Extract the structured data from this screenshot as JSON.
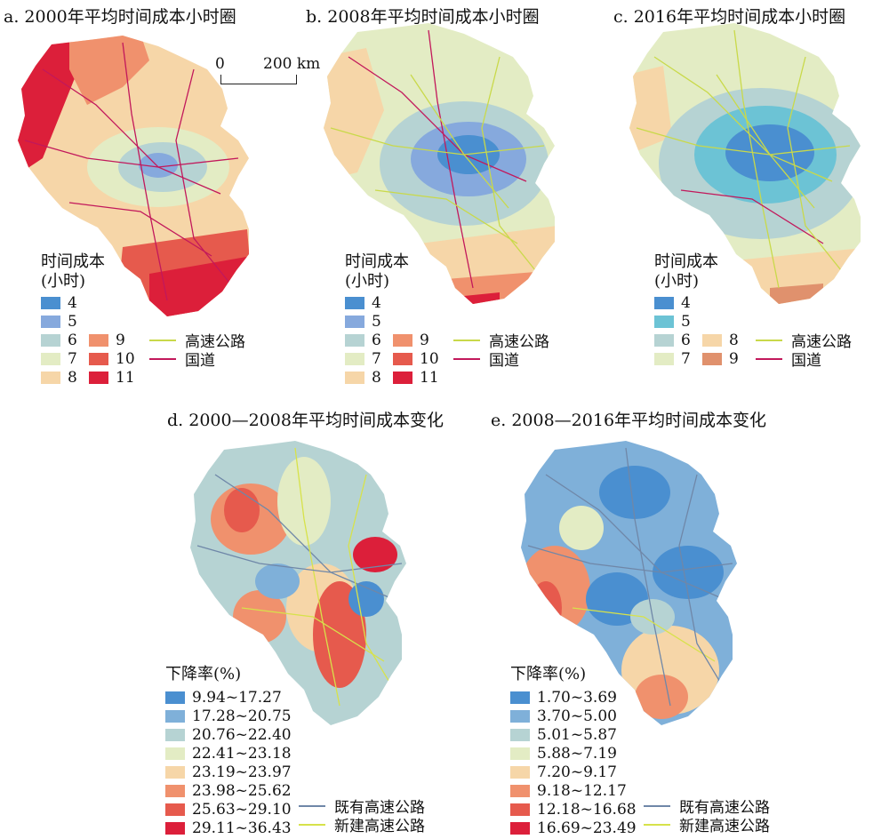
{
  "panels": {
    "a": {
      "title": "a. 2000年平均时间成本小时圈"
    },
    "b": {
      "title": "b. 2008年平均时间成本小时圈"
    },
    "c": {
      "title": "c. 2016年平均时间成本小时圈"
    },
    "d": {
      "title": "d. 2000—2008年平均时间成本变化"
    },
    "e": {
      "title": "e. 2008—2016年平均时间成本变化"
    }
  },
  "scale_bar": {
    "start": "0",
    "end": "200 km"
  },
  "legend_hours": {
    "header": "时间成本\n(小时)",
    "classes": [
      {
        "label": "4",
        "color": "#4a8fd0"
      },
      {
        "label": "5",
        "color": "#86a9dd"
      },
      {
        "label": "6",
        "color": "#b6d3d3"
      },
      {
        "label": "7",
        "color": "#e3ecc4"
      },
      {
        "label": "8",
        "color": "#f6d6a8"
      },
      {
        "label": "9",
        "color": "#f0916d"
      },
      {
        "label": "10",
        "color": "#e65a4d"
      },
      {
        "label": "11",
        "color": "#dc1f3a"
      }
    ],
    "classes_c": [
      {
        "label": "4",
        "color": "#4a8fd0"
      },
      {
        "label": "5",
        "color": "#6cc3d5"
      },
      {
        "label": "6",
        "color": "#b6d3d3"
      },
      {
        "label": "7",
        "color": "#e3ecc4"
      },
      {
        "label": "8",
        "color": "#f6d6a8"
      },
      {
        "label": "9",
        "color": "#e0916d"
      }
    ],
    "highway": "高速公路",
    "national_road": "国道"
  },
  "legend_d": {
    "header": "下降率(%)",
    "classes": [
      {
        "label": "9.94~17.27",
        "color": "#4a8fd0"
      },
      {
        "label": "17.28~20.75",
        "color": "#7fb0d9"
      },
      {
        "label": "20.76~22.40",
        "color": "#b6d3d3"
      },
      {
        "label": "22.41~23.18",
        "color": "#e3ecc4"
      },
      {
        "label": "23.19~23.97",
        "color": "#f6d6a8"
      },
      {
        "label": "23.98~25.62",
        "color": "#f0916d"
      },
      {
        "label": "25.63~29.10",
        "color": "#e65a4d"
      },
      {
        "label": "29.11~36.43",
        "color": "#dc1f3a"
      }
    ],
    "existing": "既有高速公路",
    "new": "新建高速公路"
  },
  "legend_e": {
    "header": "下降率(%)",
    "classes": [
      {
        "label": "1.70~3.69",
        "color": "#4a8fd0"
      },
      {
        "label": "3.70~5.00",
        "color": "#7fb0d9"
      },
      {
        "label": "5.01~5.87",
        "color": "#b6d3d3"
      },
      {
        "label": "5.88~7.19",
        "color": "#e3ecc4"
      },
      {
        "label": "7.20~9.17",
        "color": "#f6d6a8"
      },
      {
        "label": "9.18~12.17",
        "color": "#f0916d"
      },
      {
        "label": "12.18~16.68",
        "color": "#e65a4d"
      },
      {
        "label": "16.69~23.49",
        "color": "#dc1f3a"
      }
    ],
    "existing": "既有高速公路",
    "new": "新建高速公路"
  },
  "colors": {
    "highway": "#c9d94a",
    "national_road": "#c2185b",
    "existing_highway": "#6f87a8",
    "new_highway": "#d7e24a"
  }
}
